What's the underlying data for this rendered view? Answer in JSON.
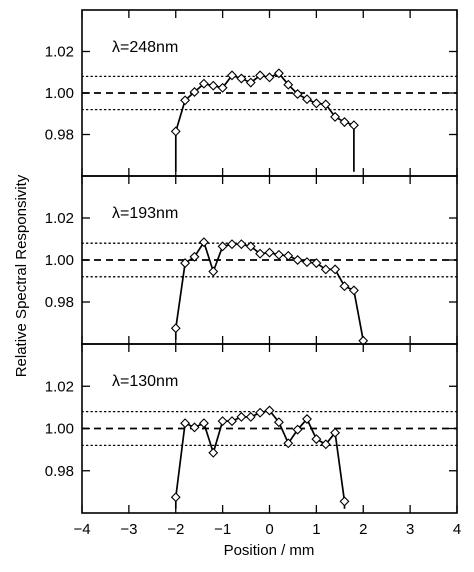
{
  "chart_data": {
    "type": "line",
    "xlabel": "Position / mm",
    "ylabel": "Relative Spectral Responsivity",
    "xlim": [
      -4,
      4
    ],
    "ylim": [
      0.96,
      1.04
    ],
    "x_ticks": [
      -4,
      -3,
      -2,
      -1,
      0,
      1,
      2,
      3,
      4
    ],
    "x_tick_labels": [
      "−4",
      "−3",
      "−2",
      "−1",
      "0",
      "1",
      "2",
      "3",
      "4"
    ],
    "y_ticks": [
      0.98,
      1.0,
      1.02
    ],
    "y_tick_labels": [
      "0.98",
      "1.00",
      "1.02"
    ],
    "reference_lines": [
      {
        "y": 1.0,
        "style": "dashed"
      },
      {
        "y": 1.008,
        "style": "dotted"
      },
      {
        "y": 0.992,
        "style": "dotted"
      }
    ],
    "panels": [
      {
        "label": "λ=248nm",
        "x": [
          -2.0,
          -1.8,
          -1.6,
          -1.4,
          -1.2,
          -1.0,
          -0.8,
          -0.6,
          -0.4,
          -0.2,
          0.0,
          0.2,
          0.4,
          0.6,
          0.8,
          1.0,
          1.2,
          1.4,
          1.6,
          1.8
        ],
        "y": [
          0.9815,
          0.9965,
          1.0005,
          1.0045,
          1.0035,
          1.0025,
          1.0085,
          1.007,
          1.005,
          1.0085,
          1.0075,
          1.0095,
          1.004,
          0.9995,
          0.997,
          0.995,
          0.9945,
          0.9885,
          0.986,
          0.9845
        ],
        "line_start_y": 0.962,
        "line_end_y": 0.962
      },
      {
        "label": "λ=193nm",
        "x": [
          -2.0,
          -1.8,
          -1.6,
          -1.4,
          -1.2,
          -1.0,
          -0.8,
          -0.6,
          -0.4,
          -0.2,
          0.0,
          0.2,
          0.4,
          0.6,
          0.8,
          1.0,
          1.2,
          1.4,
          1.6,
          1.8,
          2.0
        ],
        "y": [
          0.9675,
          0.9985,
          1.0015,
          1.0085,
          0.9945,
          1.0065,
          1.0075,
          1.0075,
          1.0065,
          1.003,
          1.0035,
          1.0025,
          1.002,
          1.0,
          0.999,
          0.9985,
          0.9955,
          0.9955,
          0.9875,
          0.9855,
          0.9615
        ],
        "line_start_y": 0.962
      },
      {
        "label": "λ=130nm",
        "x": [
          -2.0,
          -1.8,
          -1.6,
          -1.4,
          -1.2,
          -1.0,
          -0.8,
          -0.6,
          -0.4,
          -0.2,
          0.0,
          0.2,
          0.4,
          0.6,
          0.8,
          1.0,
          1.2,
          1.4,
          1.6
        ],
        "y": [
          0.9675,
          1.0025,
          1.0005,
          1.0025,
          0.9885,
          1.0035,
          1.0035,
          1.0055,
          1.0055,
          1.0075,
          1.0085,
          1.003,
          0.993,
          0.9995,
          1.0045,
          0.995,
          0.9925,
          0.998,
          0.9655
        ],
        "line_start_y": 0.962,
        "line_end_y": 0.962
      }
    ]
  }
}
